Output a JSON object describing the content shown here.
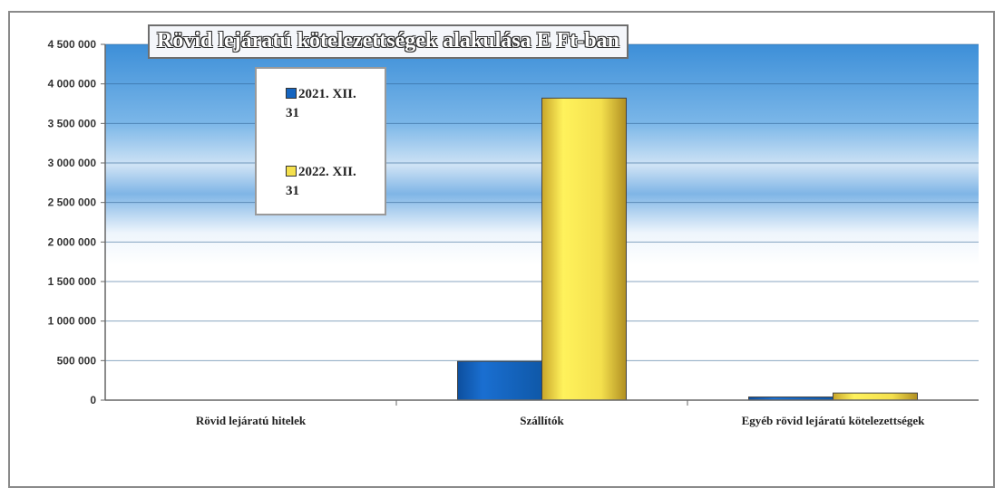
{
  "chart_data": {
    "type": "bar",
    "title": "Rövid lejáratú kötelezettségek alakulása E Ft-ban",
    "categories": [
      "Rövid lejáratú hitelek",
      "Szállítók",
      "Egyéb rövid lejáratú kötelezettségek"
    ],
    "series": [
      {
        "name": "2021. XII. 31",
        "color": "#1565c0",
        "values": [
          0,
          490000,
          40000
        ]
      },
      {
        "name": "2022. XII. 31",
        "color": "#f4e04d",
        "values": [
          0,
          3820000,
          90000
        ]
      }
    ],
    "yticks": [
      "4 500 000",
      "4 000 000",
      "3 500 000",
      "3 000 000",
      "2 500 000",
      "2 000 000",
      "1 500 000",
      "1 000 000",
      "500 000",
      "0"
    ],
    "ylim": [
      0,
      4500000
    ],
    "grid": true,
    "legend_position": "top-left"
  }
}
